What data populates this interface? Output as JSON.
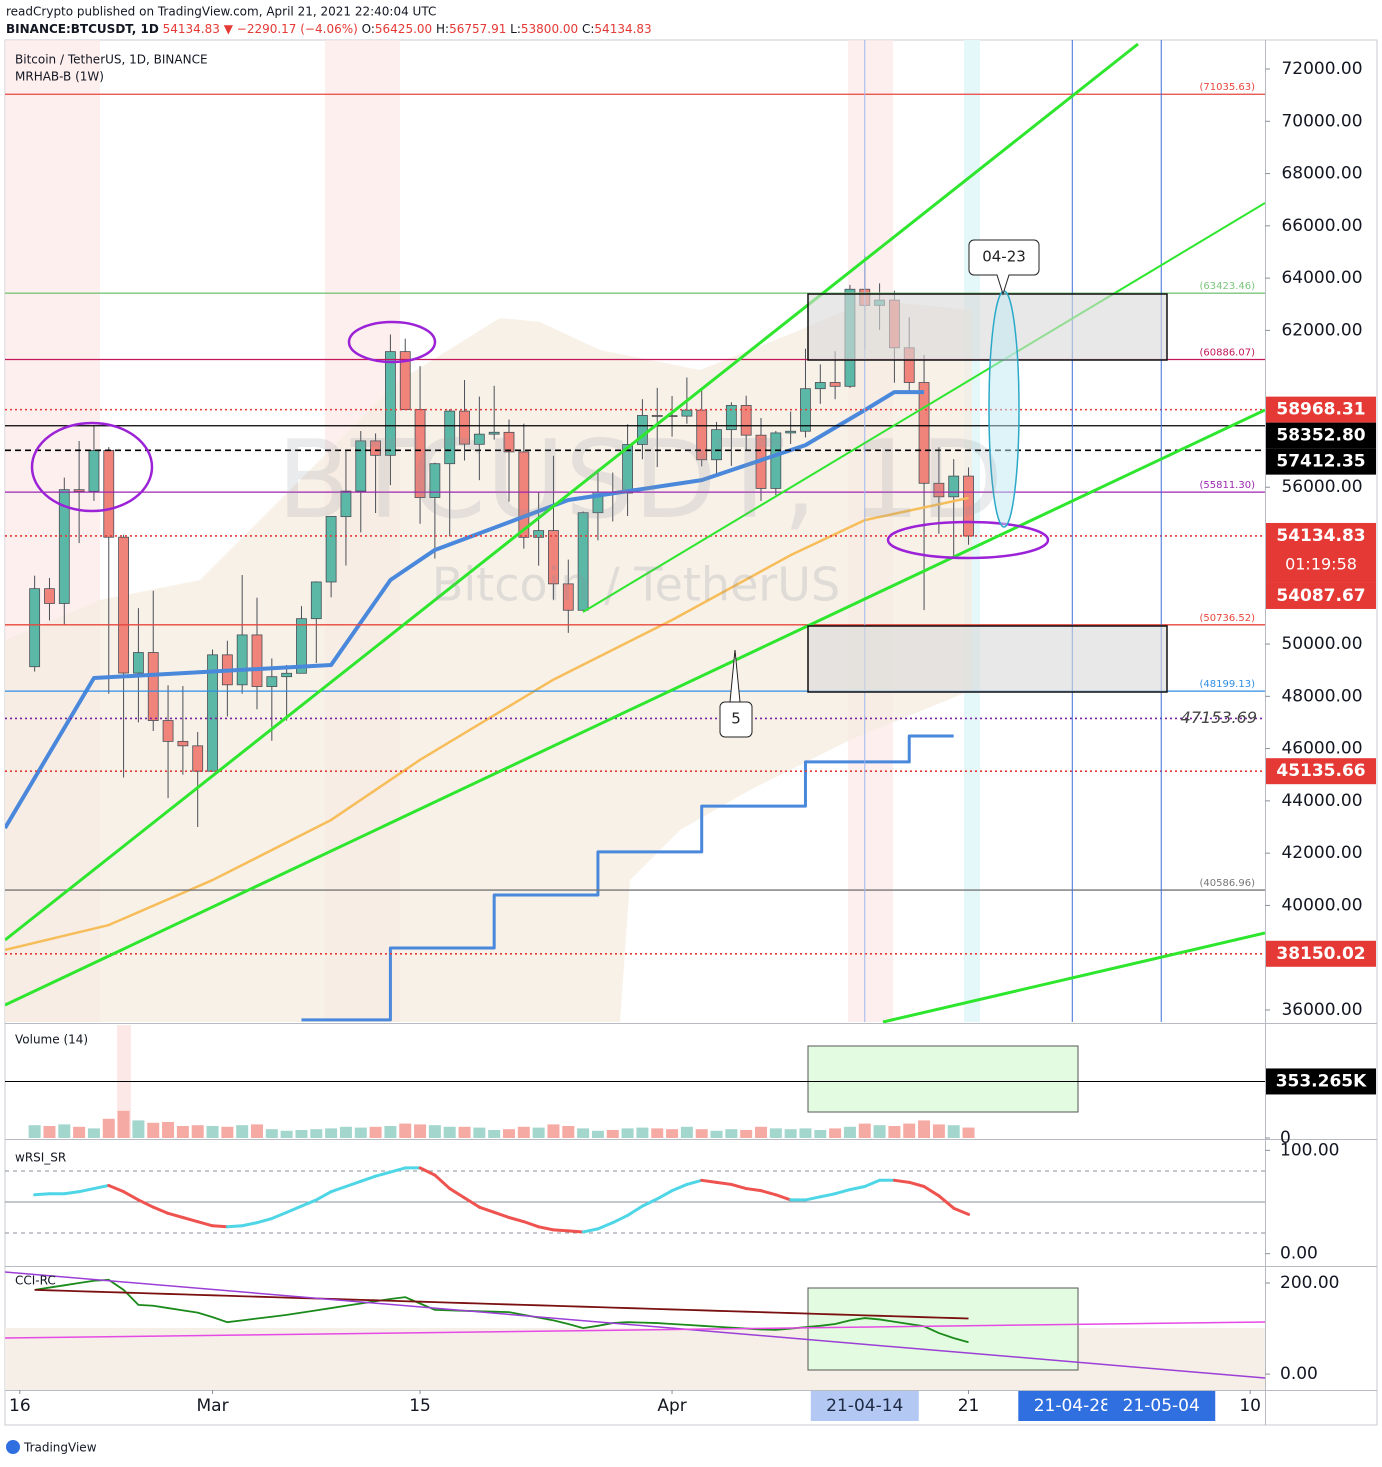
{
  "header": {
    "publisher": "readCrypto published on TradingView.com, April 21, 2021 22:40:04 UTC",
    "symbol": "BINANCE:BTCUSDT, 1D",
    "last": "54134.83",
    "change": "▼ −2290.17 (−4.06%)",
    "ohlc": [
      {
        "label": "O:",
        "value": "56425.00"
      },
      {
        "label": "H:",
        "value": "56757.91"
      },
      {
        "label": "L:",
        "value": "53800.00"
      },
      {
        "label": "C:",
        "value": "54134.83"
      }
    ]
  },
  "footer": "TradingView",
  "annotations": [
    {
      "text": "04-23"
    },
    {
      "text": "5"
    }
  ],
  "chart_data": [
    {
      "type": "candlestick",
      "title": "Bitcoin / TetherUS, 1D, BINANCE",
      "indicator": "MRHAB-B (1W)",
      "watermark": [
        "BTCUSDT, 1D",
        "Bitcoin / TetherUS"
      ],
      "up_color": "#5bb8a7",
      "down_color": "#f0837a",
      "x": [
        "21-02-17",
        "21-02-18",
        "21-02-19",
        "21-02-20",
        "21-02-21",
        "21-02-22",
        "21-02-23",
        "21-02-24",
        "21-02-25",
        "21-02-26",
        "21-02-27",
        "21-02-28",
        "21-03-01",
        "21-03-02",
        "21-03-03",
        "21-03-04",
        "21-03-05",
        "21-03-06",
        "21-03-07",
        "21-03-08",
        "21-03-09",
        "21-03-10",
        "21-03-11",
        "21-03-12",
        "21-03-13",
        "21-03-14",
        "21-03-15",
        "21-03-16",
        "21-03-17",
        "21-03-18",
        "21-03-19",
        "21-03-20",
        "21-03-21",
        "21-03-22",
        "21-03-23",
        "21-03-24",
        "21-03-25",
        "21-03-26",
        "21-03-27",
        "21-03-28",
        "21-03-29",
        "21-03-30",
        "21-03-31",
        "21-04-01",
        "21-04-02",
        "21-04-03",
        "21-04-04",
        "21-04-05",
        "21-04-06",
        "21-04-07",
        "21-04-08",
        "21-04-09",
        "21-04-10",
        "21-04-11",
        "21-04-12",
        "21-04-13",
        "21-04-14",
        "21-04-15",
        "21-04-16",
        "21-04-17",
        "21-04-18",
        "21-04-19",
        "21-04-20",
        "21-04-21"
      ],
      "open": [
        49133,
        52119,
        51552,
        55906,
        55841,
        57408,
        54087,
        48891,
        49676,
        47073,
        46276,
        46106,
        45135,
        49587,
        48440,
        50349,
        48374,
        48751,
        48882,
        50971,
        52375,
        54874,
        55851,
        57773,
        57221,
        61188,
        58976,
        55605,
        56900,
        58912,
        57641,
        58030,
        58100,
        57351,
        54083,
        54342,
        52303,
        51293,
        55025,
        55817,
        55777,
        57635,
        58746,
        58740,
        58720,
        58950,
        57051,
        58202,
        59129,
        57990,
        55953,
        58077,
        58142,
        59770,
        60007,
        59860,
        63575,
        62959,
        63159,
        61334,
        60006,
        56150,
        55633,
        56425
      ],
      "high": [
        52618,
        52530,
        56368,
        57767,
        58352,
        57533,
        54183,
        51374,
        52041,
        48424,
        48394,
        46638,
        49790,
        50127,
        52640,
        51773,
        49448,
        49200,
        51450,
        52402,
        54895,
        57387,
        58150,
        58058,
        61844,
        61683,
        60633,
        56938,
        58981,
        60100,
        59468,
        59880,
        58589,
        58430,
        55830,
        57200,
        53230,
        55073,
        56700,
        56559,
        58405,
        59368,
        59800,
        59490,
        60200,
        59791,
        58500,
        59250,
        59500,
        58650,
        58153,
        58894,
        61300,
        60700,
        61200,
        63742,
        64854,
        63800,
        63520,
        62500,
        61057,
        57526,
        57076,
        56757
      ],
      "low": [
        48947,
        50901,
        50710,
        53863,
        55477,
        48100,
        44892,
        47003,
        46674,
        44106,
        45000,
        43000,
        45115,
        47228,
        48100,
        47500,
        46300,
        47070,
        48882,
        49274,
        51789,
        53005,
        54272,
        55013,
        56078,
        58966,
        54600,
        53271,
        54120,
        57023,
        56270,
        57820,
        55450,
        53650,
        53000,
        51700,
        50427,
        51283,
        53966,
        54691,
        54900,
        57071,
        56769,
        57935,
        58428,
        56800,
        56478,
        56817,
        57413,
        55473,
        55700,
        57654,
        57903,
        59191,
        59367,
        59800,
        61301,
        62020,
        60000,
        59580,
        51300,
        54221,
        53329,
        53800
      ],
      "close": [
        52119,
        51552,
        55906,
        55841,
        57408,
        54087,
        48891,
        49676,
        47073,
        46276,
        46106,
        45135,
        49587,
        48440,
        50349,
        48374,
        48751,
        48882,
        50971,
        52375,
        54884,
        55851,
        57773,
        57221,
        61188,
        58968,
        55605,
        56900,
        58912,
        57648,
        58030,
        58102,
        57351,
        54083,
        54340,
        52303,
        51293,
        55025,
        55817,
        55777,
        57635,
        58746,
        58740,
        58720,
        58950,
        57051,
        58202,
        59129,
        57991,
        55953,
        58077,
        58142,
        59770,
        60007,
        59860,
        63575,
        62959,
        63159,
        61334,
        60006,
        56150,
        55633,
        56425,
        54134
      ],
      "series": [
        {
          "color": "#f6bd5a",
          "x": [
            "21-02-15",
            "21-02-22",
            "21-03-01",
            "21-03-09",
            "21-03-15",
            "21-03-24",
            "21-04-01",
            "21-04-09",
            "21-04-14",
            "21-04-21"
          ],
          "values": [
            38300,
            39250,
            40970,
            43270,
            45570,
            48640,
            50920,
            53400,
            54740,
            55590
          ]
        },
        {
          "color": "#4a88dc",
          "width": 4,
          "x": [
            "21-02-15",
            "21-02-21",
            "21-03-09",
            "21-03-13",
            "21-03-16",
            "21-03-25",
            "21-04-03",
            "21-04-10",
            "21-04-14",
            "21-04-16",
            "21-04-18"
          ],
          "values": [
            42960,
            48700,
            49200,
            52450,
            53600,
            55510,
            56270,
            57610,
            58950,
            59640,
            59640
          ]
        },
        {
          "color": "#4a88dc",
          "width": 3,
          "step": true,
          "x": [
            "21-03-07",
            "21-03-13",
            "21-03-20",
            "21-03-27",
            "21-04-03",
            "21-04-10",
            "21-04-17",
            "21-04-20"
          ],
          "values": [
            35620,
            38370,
            40400,
            42050,
            43800,
            45490,
            46480,
            46480
          ]
        }
      ],
      "levels": [
        {
          "value": 71035.63,
          "label": "(71035.63)",
          "color": "#e8463c",
          "style": "solid",
          "tag": "inline"
        },
        {
          "value": 63423.46,
          "label": "(63423.46)",
          "color": "#7cc47c",
          "style": "solid",
          "tag": "inline"
        },
        {
          "value": 60886.07,
          "label": "(60886.07)",
          "color": "#c2185b",
          "style": "solid",
          "tag": "inline"
        },
        {
          "value": 58968.31,
          "label": "58968.31",
          "color": "#e53935",
          "style": "dotted",
          "tag": "axis"
        },
        {
          "value": 58352.8,
          "label": "58352.80",
          "color": "#000000",
          "style": "solid",
          "tag": "axis"
        },
        {
          "value": 57412.35,
          "label": "57412.35",
          "color": "#000000",
          "style": "dashed",
          "tag": "axis"
        },
        {
          "value": 55811.3,
          "label": "(55811.30)",
          "color": "#9c27b0",
          "style": "solid",
          "tag": "inline"
        },
        {
          "value": 54134.83,
          "label": "54134.83",
          "countdown": "01:19:58",
          "color": "#e53935",
          "style": "dotted",
          "tag": "axis"
        },
        {
          "value": 54087.67,
          "label": "54087.67",
          "color": "#e53935",
          "style": "none",
          "tag": "axis"
        },
        {
          "value": 50736.52,
          "label": "(50736.52)",
          "color": "#e8463c",
          "style": "solid",
          "tag": "inline"
        },
        {
          "value": 48199.13,
          "label": "(48199.13)",
          "color": "#2f8de4",
          "style": "solid",
          "tag": "inline"
        },
        {
          "value": 47153.69,
          "label": "47153.69",
          "color": "#7b1fa2",
          "style": "dotted",
          "tag": "italic"
        },
        {
          "value": 45135.66,
          "label": "45135.66",
          "color": "#e53935",
          "style": "dotted",
          "tag": "axis"
        },
        {
          "value": 40586.96,
          "label": "(40586.96)",
          "color": "#777777",
          "style": "solid",
          "tag": "inline"
        },
        {
          "value": 38150.02,
          "label": "38150.02",
          "color": "#e53935",
          "style": "dotted",
          "tag": "axis"
        }
      ],
      "xlim": [
        "21-02-15",
        "21-05-11"
      ],
      "xticks": [
        {
          "value": "21-02-16",
          "label": "16"
        },
        {
          "value": "21-03-01",
          "label": "Mar"
        },
        {
          "value": "21-03-15",
          "label": "15"
        },
        {
          "value": "21-04-01",
          "label": "Apr"
        },
        {
          "value": "21-04-21",
          "label": "21"
        },
        {
          "value": "21-05-10",
          "label": "10"
        }
      ],
      "x_markers": [
        {
          "value": "21-04-14",
          "color": "#b3c9f3",
          "text_color": "#1e2a44",
          "line_color": "#9db8ee"
        },
        {
          "value": "21-04-28",
          "color": "#2f6fe0",
          "text_color": "#ffffff",
          "line_color": "#3b6fdc"
        },
        {
          "value": "21-05-04",
          "color": "#2f6fe0",
          "text_color": "#ffffff",
          "line_color": "#3b6fdc"
        }
      ],
      "ylim": [
        35540,
        73110
      ],
      "yticks": [
        {
          "value": 36000,
          "label": "36000.00"
        },
        {
          "value": 40000,
          "label": "40000.00"
        },
        {
          "value": 42000,
          "label": "42000.00"
        },
        {
          "value": 44000,
          "label": "44000.00"
        },
        {
          "value": 46000,
          "label": "46000.00"
        },
        {
          "value": 48000,
          "label": "48000.00"
        },
        {
          "value": 50000,
          "label": "50000.00"
        },
        {
          "value": 56000,
          "label": "56000.00"
        },
        {
          "value": 62000,
          "label": "62000.00"
        },
        {
          "value": 64000,
          "label": "64000.00"
        },
        {
          "value": 66000,
          "label": "66000.00"
        },
        {
          "value": 68000,
          "label": "68000.00"
        },
        {
          "value": 70000,
          "label": "70000.00"
        },
        {
          "value": 72000,
          "label": "72000.00"
        }
      ]
    },
    {
      "type": "bar",
      "title": "Volume (14)",
      "up_color": "#a3d6cd",
      "down_color": "#f6aaa4",
      "values": [
        80,
        75,
        85,
        70,
        60,
        120,
        170,
        110,
        95,
        100,
        75,
        80,
        75,
        70,
        80,
        85,
        55,
        45,
        50,
        55,
        60,
        70,
        65,
        70,
        75,
        90,
        85,
        80,
        70,
        70,
        65,
        50,
        55,
        70,
        65,
        85,
        75,
        60,
        45,
        50,
        60,
        65,
        60,
        55,
        70,
        55,
        45,
        55,
        50,
        70,
        60,
        55,
        60,
        50,
        60,
        70,
        90,
        80,
        75,
        90,
        110,
        85,
        80,
        65
      ],
      "ylim": [
        0,
        706
      ],
      "yticks": [
        0
      ],
      "level": {
        "value": 353.265,
        "label": "353.265K"
      }
    },
    {
      "type": "line",
      "title": "wRSI_SR",
      "up_color": "#4fd6e6",
      "down_color": "#ef5350",
      "values": [
        57,
        58,
        58,
        60,
        63,
        66,
        60,
        52,
        45,
        39,
        35,
        31,
        27,
        26,
        27,
        30,
        34,
        40,
        46,
        52,
        60,
        65,
        70,
        75,
        79,
        83,
        83,
        76,
        63,
        54,
        45,
        40,
        35,
        31,
        26,
        23,
        22,
        21,
        24,
        30,
        37,
        46,
        53,
        61,
        67,
        71,
        69,
        67,
        63,
        61,
        57,
        52,
        52,
        55,
        58,
        62,
        65,
        71,
        71,
        69,
        65,
        56,
        44,
        38
      ],
      "hlines": [
        80,
        50,
        20
      ],
      "ylim": [
        -10,
        110
      ],
      "yticks": [
        {
          "value": 0,
          "label": "0.00"
        },
        {
          "value": 100,
          "label": "100.00"
        }
      ]
    },
    {
      "type": "line",
      "title": "CCI-RC",
      "series": [
        {
          "color": "#1b8a1b",
          "values": [
            185,
            190,
            195,
            200,
            205,
            207,
            185,
            152,
            150,
            145,
            140,
            135,
            125,
            114,
            118,
            122,
            126,
            130,
            135,
            140,
            145,
            150,
            155,
            160,
            165,
            169,
            155,
            141,
            140,
            139,
            138,
            137,
            136,
            130,
            124,
            118,
            110,
            101,
            106,
            112,
            114,
            113,
            112,
            110,
            108,
            106,
            104,
            102,
            100,
            98,
            97,
            100,
            103,
            106,
            110,
            118,
            123,
            120,
            115,
            110,
            105,
            90,
            79,
            70
          ]
        },
        {
          "color": "#7a1010",
          "values": [
            185,
            184,
            183,
            182,
            181,
            180,
            179,
            178,
            177,
            176,
            175,
            174,
            173,
            172,
            171,
            170,
            169,
            168,
            167,
            166,
            165,
            164,
            163,
            162,
            161,
            160,
            159,
            158,
            157,
            156,
            155,
            154,
            153,
            152,
            151,
            150,
            149,
            148,
            147,
            146,
            145,
            144,
            143,
            142,
            141,
            140,
            139,
            138,
            137,
            136,
            135,
            134,
            133,
            132,
            131,
            130,
            129,
            128,
            127,
            126,
            125,
            124,
            123,
            122
          ]
        }
      ],
      "ylim": [
        -35,
        233
      ],
      "yticks": [
        {
          "value": 0,
          "label": "0.00"
        },
        {
          "value": 200,
          "label": "200.00"
        }
      ]
    }
  ]
}
